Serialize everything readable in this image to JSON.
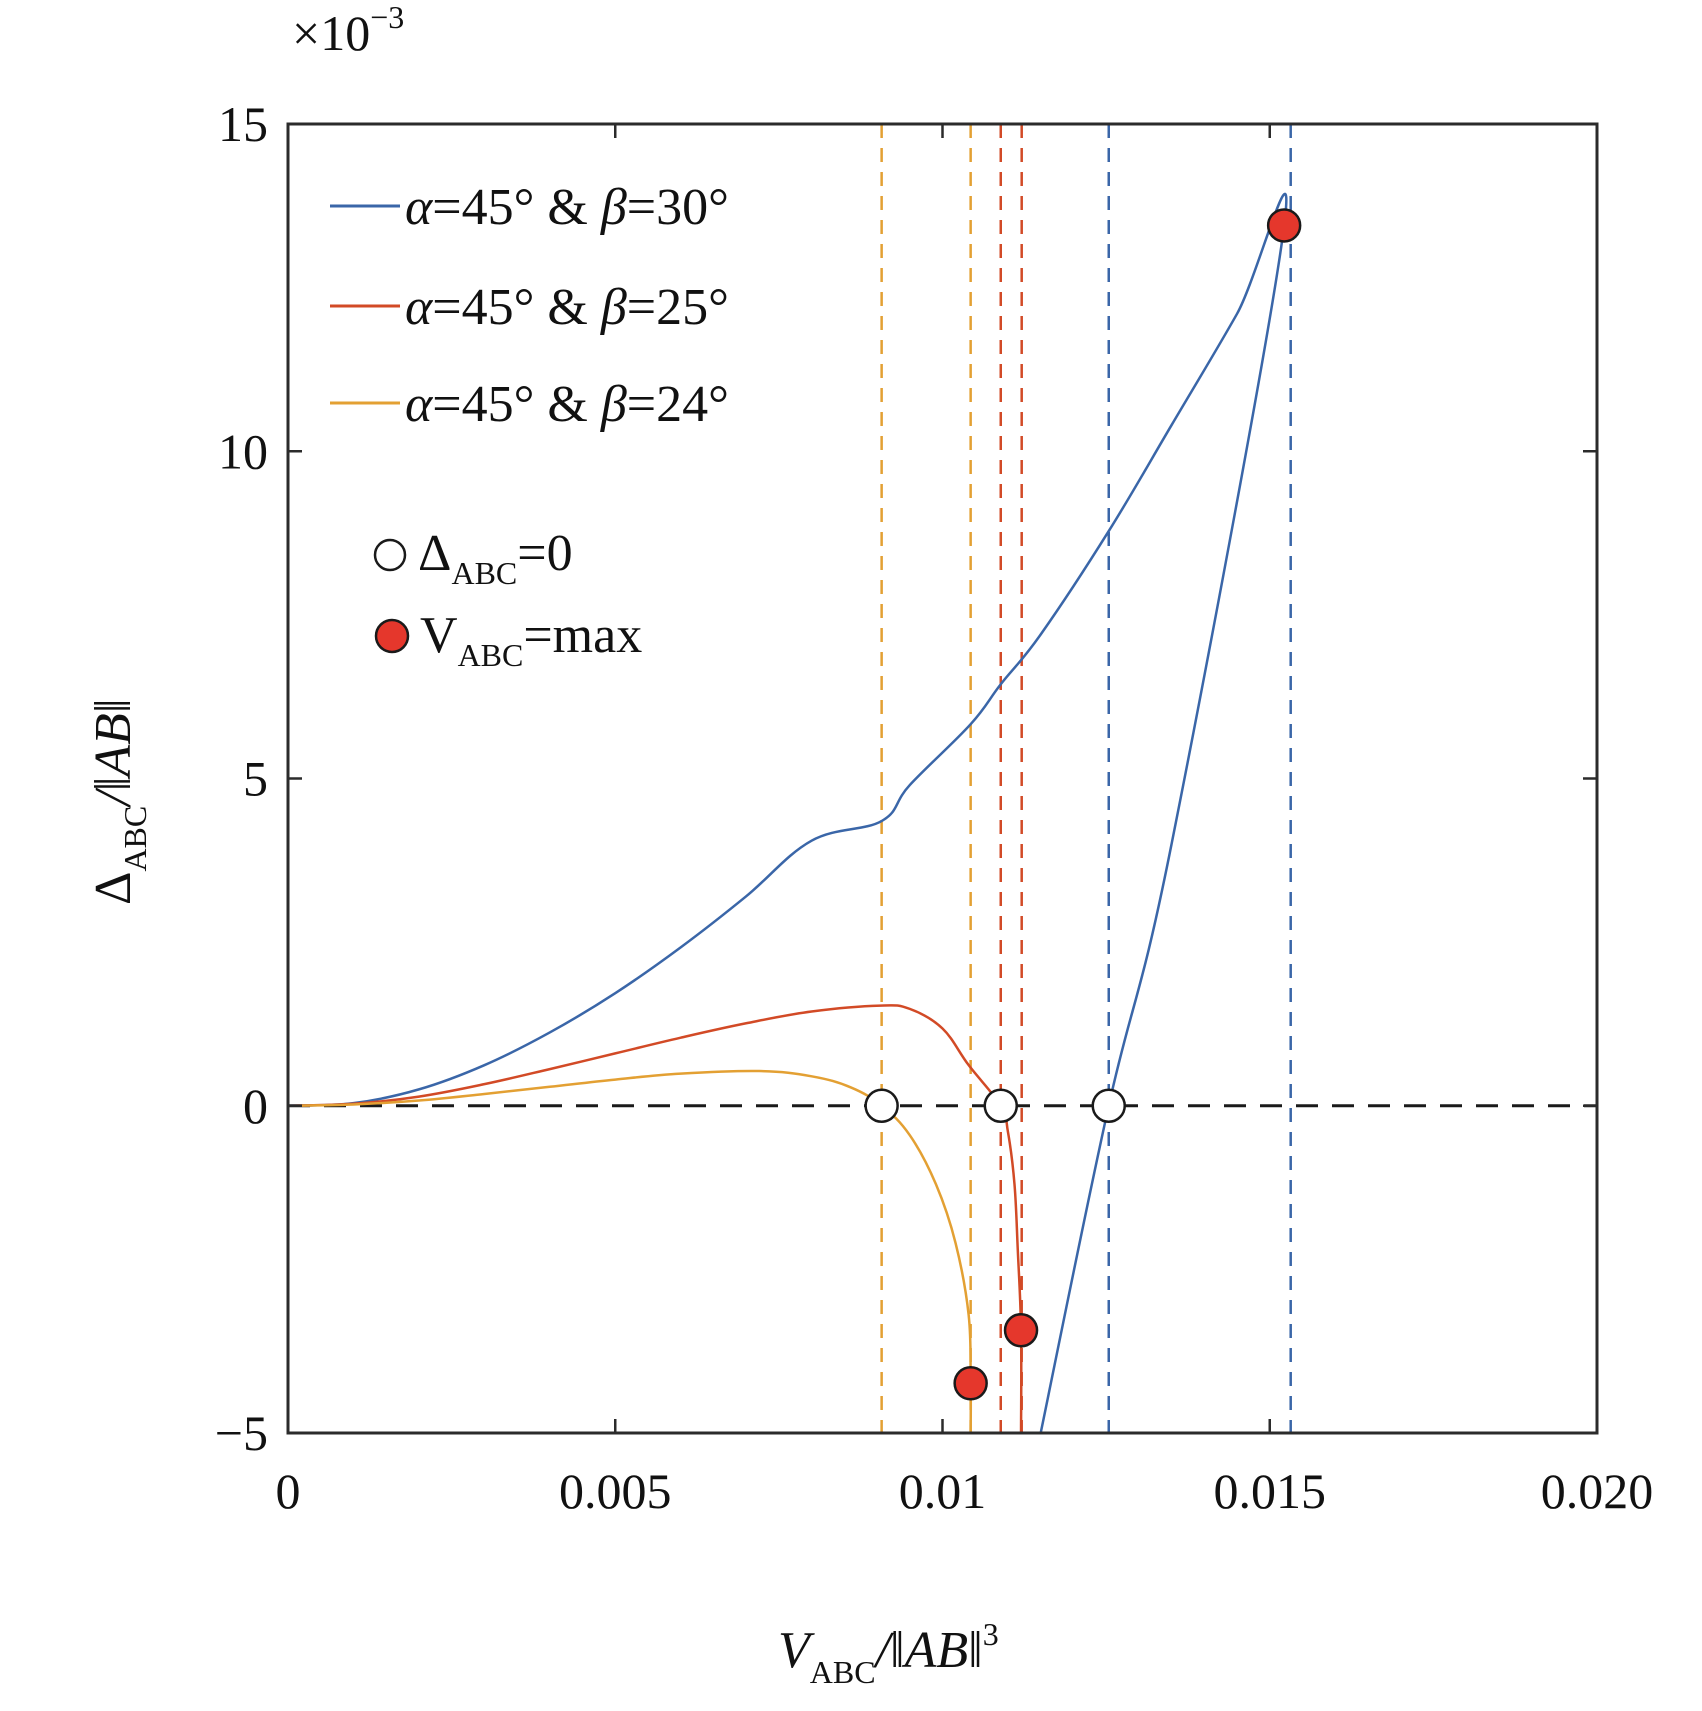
{
  "chart_data": {
    "type": "line",
    "title": "",
    "xlabel": {
      "main": "V",
      "sub": "ABC",
      "rest": "/‖AB‖",
      "sup": "3"
    },
    "ylabel": {
      "main": "Δ",
      "sub": "ABC",
      "rest": "/‖AB‖"
    },
    "y_multiplier": {
      "base": "×10",
      "exp": "−3"
    },
    "xlim": [
      0,
      0.02
    ],
    "ylim": [
      -5,
      15
    ],
    "x_ticks": [
      0,
      0.005,
      0.01,
      0.015,
      0.02
    ],
    "x_tick_labels": [
      "0",
      "0.005",
      "0.01",
      "0.015",
      "0.020"
    ],
    "y_ticks": [
      -5,
      0,
      5,
      10,
      15
    ],
    "y_tick_labels": [
      "−5",
      "0",
      "5",
      "10",
      "15"
    ],
    "grid": false,
    "zero_line": {
      "y": 0,
      "color": "#1a1a1a",
      "style": "dashed"
    },
    "series": [
      {
        "name": "α=45° & β=30°",
        "legend": {
          "a": "α",
          "a_val": "=45° & ",
          "b": "β",
          "b_val": "=30°"
        },
        "color": "#3a66a8",
        "points": [
          [
            0,
            0
          ],
          [
            0.001,
            0.04
          ],
          [
            0.002,
            0.25
          ],
          [
            0.003,
            0.62
          ],
          [
            0.004,
            1.12
          ],
          [
            0.005,
            1.72
          ],
          [
            0.006,
            2.42
          ],
          [
            0.007,
            3.2
          ],
          [
            0.008,
            4.05
          ],
          [
            0.00907,
            4.35
          ],
          [
            0.0095,
            4.9
          ],
          [
            0.01043,
            5.83
          ],
          [
            0.01089,
            6.44
          ],
          [
            0.0115,
            7.2
          ],
          [
            0.01254,
            8.78
          ],
          [
            0.0135,
            10.4
          ],
          [
            0.0145,
            12.1
          ],
          [
            0.01522,
            13.45
          ],
          [
            0.0135,
            4.0
          ],
          [
            0.01254,
            0
          ],
          [
            0.0115,
            -5
          ]
        ],
        "vlines": [
          0.01254,
          0.01532
        ],
        "zero_crossing": [
          0.01254,
          0
        ],
        "max_point": [
          0.01522,
          13.45
        ]
      },
      {
        "name": "α=45° & β=25°",
        "legend": {
          "a": "α",
          "a_val": "=45° & ",
          "b": "β",
          "b_val": "=25°"
        },
        "color": "#d24a26",
        "points": [
          [
            0,
            0
          ],
          [
            0.001,
            0.03
          ],
          [
            0.002,
            0.14
          ],
          [
            0.003,
            0.33
          ],
          [
            0.004,
            0.56
          ],
          [
            0.005,
            0.8
          ],
          [
            0.006,
            1.04
          ],
          [
            0.007,
            1.26
          ],
          [
            0.008,
            1.44
          ],
          [
            0.00905,
            1.53
          ],
          [
            0.0095,
            1.48
          ],
          [
            0.01,
            1.18
          ],
          [
            0.0104,
            0.62
          ],
          [
            0.01089,
            0
          ],
          [
            0.011,
            -0.4
          ],
          [
            0.0111,
            -1.2
          ],
          [
            0.01115,
            -2.2
          ],
          [
            0.0112,
            -3.43
          ],
          [
            0.0112,
            -5
          ]
        ],
        "vlines": [
          0.01089,
          0.01121
        ],
        "zero_crossing": [
          0.01089,
          0
        ],
        "max_point": [
          0.0112,
          -3.43
        ]
      },
      {
        "name": "α=45° & β=24°",
        "legend": {
          "a": "α",
          "a_val": "=45° & ",
          "b": "β",
          "b_val": "=24°"
        },
        "color": "#e3a033",
        "points": [
          [
            0,
            0
          ],
          [
            0.001,
            0.02
          ],
          [
            0.002,
            0.08
          ],
          [
            0.003,
            0.18
          ],
          [
            0.004,
            0.29
          ],
          [
            0.005,
            0.4
          ],
          [
            0.006,
            0.49
          ],
          [
            0.0072,
            0.53
          ],
          [
            0.008,
            0.45
          ],
          [
            0.0086,
            0.28
          ],
          [
            0.00907,
            0
          ],
          [
            0.0095,
            -0.45
          ],
          [
            0.0099,
            -1.2
          ],
          [
            0.0102,
            -2.1
          ],
          [
            0.0104,
            -3.2
          ],
          [
            0.01043,
            -4.24
          ],
          [
            0.01043,
            -5
          ]
        ],
        "vlines": [
          0.00907,
          0.01043
        ],
        "zero_crossing": [
          0.00907,
          0
        ],
        "max_point": [
          0.01043,
          -4.24
        ]
      }
    ],
    "marker_legend": [
      {
        "symbol": "open-circle",
        "main": "Δ",
        "sub": "ABC",
        "rest": "=0"
      },
      {
        "symbol": "red-dot",
        "main": "V",
        "sub": "ABC",
        "rest": "=max"
      }
    ],
    "marker_colors": {
      "open": "#ffffff",
      "filled": "#e5372c",
      "edge": "#1a1a1a"
    },
    "legend_position": "top-left"
  }
}
